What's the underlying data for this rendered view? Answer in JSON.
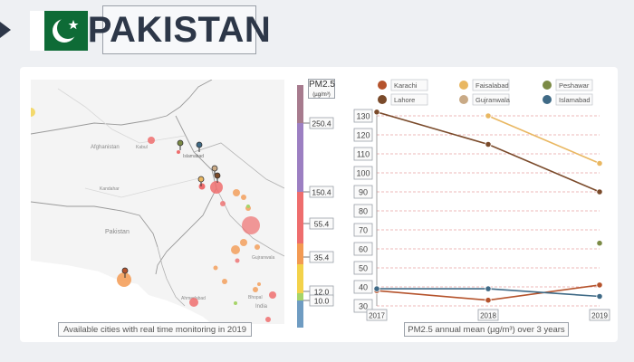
{
  "header": {
    "title": "PAKISTAN"
  },
  "map": {
    "caption": "Available cities with real time monitoring in 2019",
    "labels": [
      "Afghanistan",
      "Kabul",
      "Islamabad",
      "Kandahar",
      "Pakistan",
      "Gujranwala",
      "Ahmedabad",
      "India",
      "Bhopal"
    ]
  },
  "scale": {
    "title": "PM2.5",
    "unit": "(µg/m³)",
    "ticks": [
      "250.4",
      "150.4",
      "55.4",
      "35.4",
      "12.0",
      "10.0"
    ],
    "colors": [
      "#a77b8e",
      "#9c7fc2",
      "#ee6d6d",
      "#f39a52",
      "#f3d24a",
      "#a6d469",
      "#6f9cc2"
    ]
  },
  "chart_data": {
    "type": "line",
    "title": "PM2.5 annual mean (µg/m³) over 3 years",
    "x": [
      "2017",
      "2018",
      "2019"
    ],
    "ylim": [
      30,
      130
    ],
    "yticks": [
      30,
      40,
      50,
      60,
      70,
      80,
      90,
      100,
      110,
      120,
      130
    ],
    "grid": true,
    "legend_placement": "top",
    "series": [
      {
        "name": "Karachi",
        "color": "#b5532c",
        "values": [
          38,
          33,
          41
        ]
      },
      {
        "name": "Lahore",
        "color": "#7a4a2a",
        "values": [
          132,
          115,
          90
        ]
      },
      {
        "name": "Faisalabad",
        "color": "#e9b761",
        "values": [
          null,
          130,
          105
        ]
      },
      {
        "name": "Gujranwala",
        "color": "#c9aa86",
        "values": [
          null,
          null,
          null
        ]
      },
      {
        "name": "Peshawar",
        "color": "#7b8a45",
        "values": [
          null,
          null,
          63
        ]
      },
      {
        "name": "Islamabad",
        "color": "#3f6a86",
        "values": [
          39,
          39,
          35
        ]
      }
    ]
  }
}
